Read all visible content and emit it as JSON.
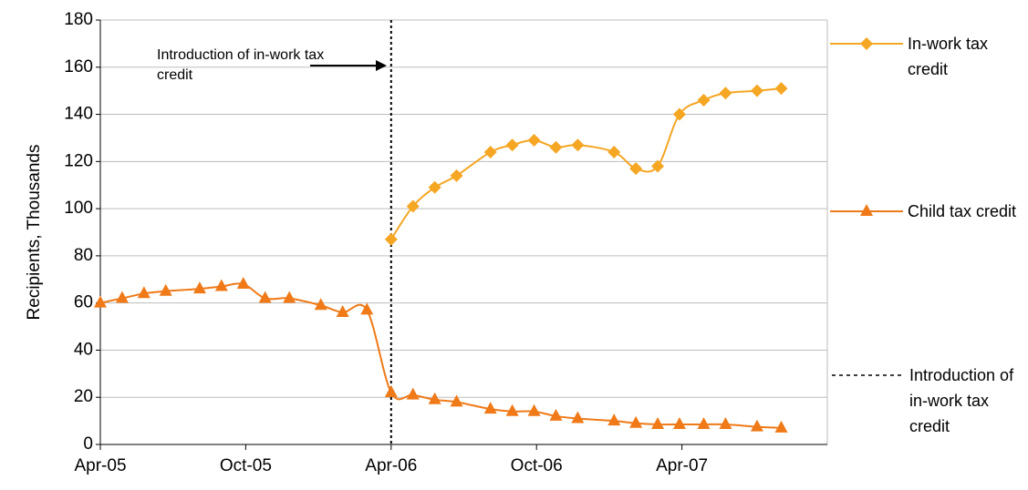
{
  "chart_data": {
    "type": "line",
    "y_label": "Recipients, Thousands",
    "x": [
      0,
      0.9,
      1.8,
      2.7,
      4.1,
      5.0,
      5.9,
      6.8,
      7.8,
      9.1,
      10.0,
      11.0,
      12.0,
      12.9,
      13.8,
      14.7,
      16.1,
      17.0,
      17.9,
      18.8,
      19.7,
      21.2,
      22.1,
      23.0,
      23.9,
      24.9,
      25.8,
      27.1,
      28.1
    ],
    "series": [
      {
        "name": "In-work tax credit",
        "color": "#f5a623",
        "marker": "diamond",
        "values": [
          null,
          null,
          null,
          null,
          null,
          null,
          null,
          null,
          null,
          null,
          null,
          null,
          87,
          101,
          109,
          114,
          124,
          127,
          129,
          126,
          127,
          124,
          117,
          118,
          140,
          146,
          149,
          150,
          151
        ]
      },
      {
        "name": "Child tax credit",
        "color": "#f07a18",
        "marker": "triangle",
        "values": [
          60,
          62,
          64,
          65,
          66,
          67,
          68,
          62,
          62,
          59,
          56,
          57,
          22,
          21,
          19,
          18,
          15,
          14,
          14,
          12,
          11,
          10,
          9,
          8.5,
          8.5,
          8.5,
          8.5,
          7.5,
          7
        ]
      }
    ],
    "vline": {
      "x": 12,
      "name": "Introduction of in-work tax credit"
    },
    "annotation": "Introduction of in-work tax credit",
    "xlim": [
      0,
      30
    ],
    "xticks": [
      {
        "value": 0,
        "label": "Apr-05"
      },
      {
        "value": 6,
        "label": "Oct-05"
      },
      {
        "value": 12,
        "label": "Apr-06"
      },
      {
        "value": 18,
        "label": "Oct-06"
      },
      {
        "value": 24,
        "label": "Apr-07"
      }
    ],
    "ylim": [
      0,
      180
    ],
    "yticks": [
      0,
      20,
      40,
      60,
      80,
      100,
      120,
      140,
      160,
      180
    ],
    "grid": true,
    "legend": "right"
  }
}
